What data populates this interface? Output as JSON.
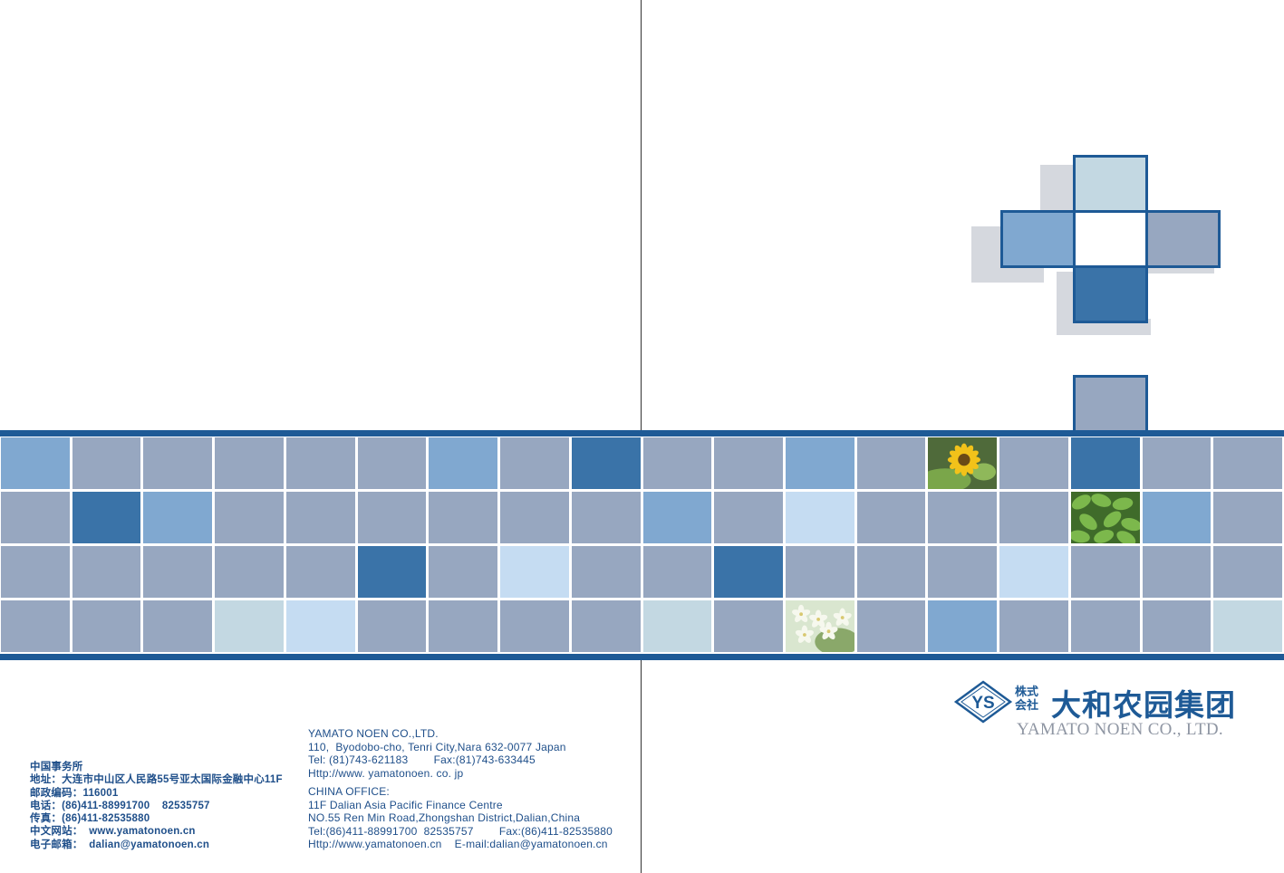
{
  "colors": {
    "grey_blue": "#97a7c0",
    "mid_blue": "#80a8d0",
    "dark_blue": "#3a73a8",
    "light_blue": "#c5dcf2",
    "pale_teal": "#c3d8e2",
    "rule": "#1e5a96",
    "text": "#1f4f8a",
    "logo_grey": "#8f96a3"
  },
  "grid_rows": [
    [
      "mid",
      "grey",
      "grey",
      "grey",
      "grey",
      "grey",
      "mid",
      "grey",
      "dark",
      "grey",
      "grey",
      "mid",
      "grey",
      "photo-sunflower",
      "grey",
      "dark",
      "grey",
      "grey"
    ],
    [
      "grey",
      "dark",
      "mid",
      "grey",
      "grey",
      "grey",
      "grey",
      "grey",
      "grey",
      "mid",
      "grey",
      "light",
      "grey",
      "grey",
      "grey",
      "photo-leaves",
      "mid",
      "grey"
    ],
    [
      "grey",
      "grey",
      "grey",
      "grey",
      "grey",
      "dark",
      "grey",
      "light",
      "grey",
      "grey",
      "dark",
      "grey",
      "grey",
      "grey",
      "light",
      "grey",
      "grey",
      "grey"
    ],
    [
      "grey",
      "grey",
      "grey",
      "teal",
      "light",
      "grey",
      "grey",
      "grey",
      "grey",
      "teal",
      "grey",
      "photo-flowers",
      "grey",
      "mid",
      "grey",
      "grey",
      "grey",
      "teal"
    ]
  ],
  "china_contact": {
    "title": "中国事务所",
    "address": "地址：大连市中山区人民路55号亚太国际金融中心11F",
    "postcode": "邮政编码：116001",
    "phone": "电话：(86)411-88991700    82535757",
    "fax": "传真：(86)411-82535880",
    "website": "中文网站：  www.yamatonoen.cn",
    "email": "电子邮箱：  dalian@yamatonoen.cn"
  },
  "english_contact": {
    "company": "YAMATO NOEN CO.,LTD.",
    "japan_address": "110,  Byodobo-cho, Tenri City,Nara 632-0077 Japan",
    "japan_tel_fax": "Tel: (81)743-621183        Fax:(81)743-633445",
    "japan_web": "Http://www. yamatonoen. co. jp",
    "china_office": "CHINA OFFICE:",
    "china_addr1": "11F Dalian Asia Pacific Finance Centre",
    "china_addr2": "NO.55 Ren Min Road,Zhongshan District,Dalian,China",
    "china_tel_fax": "Tel:(86)411-88991700  82535757        Fax:(86)411-82535880",
    "china_web_email": "Http://www.yamatonoen.cn    E-mail:dalian@yamatonoen.cn"
  },
  "logo": {
    "mark": "YS",
    "small_text": "株式会社",
    "name_cn": "大和农园集团",
    "name_en": "YAMATO NOEN CO., LTD."
  }
}
